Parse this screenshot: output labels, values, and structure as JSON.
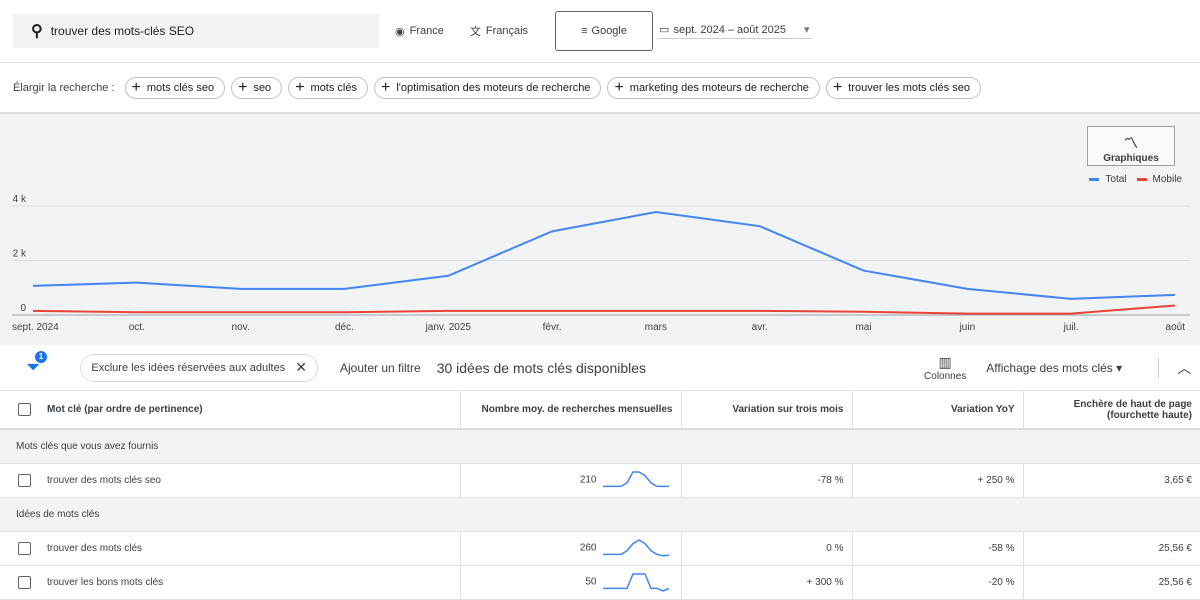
{
  "search": {
    "value": "trouver des mots-clés SEO",
    "location": "France",
    "language": "Français",
    "network": "Google",
    "date_range": "sept. 2024 – août 2025"
  },
  "broaden": {
    "label": "Élargir la recherche :",
    "chips": [
      "mots clés seo",
      "seo",
      "mots clés",
      "l'optimisation des moteurs de recherche",
      "marketing des moteurs de recherche",
      "trouver les mots clés seo"
    ]
  },
  "chart_data": {
    "type": "line",
    "categories": [
      "sept. 2024",
      "oct.",
      "nov.",
      "déc.",
      "janv. 2025",
      "févr.",
      "mars",
      "avr.",
      "mai",
      "juin",
      "juil.",
      "août"
    ],
    "y_ticks": [
      "0",
      "2 k",
      "4 k"
    ],
    "ylim": [
      0,
      4000
    ],
    "grid": true,
    "legend": "top-right",
    "series": [
      {
        "name": "Total",
        "color": "#4285f4",
        "values": [
          1070,
          1190,
          960,
          960,
          1440,
          3070,
          3780,
          3260,
          1630,
          960,
          590,
          740
        ]
      },
      {
        "name": "Mobile",
        "color": "#ea4335",
        "values": [
          150,
          100,
          100,
          100,
          150,
          150,
          150,
          150,
          120,
          50,
          50,
          350
        ]
      }
    ]
  },
  "graph_button": "Graphiques",
  "filters": {
    "badge": "1",
    "chip": "Exclure les idées réservées aux adultes",
    "add": "Ajouter un filtre",
    "count": "30 idées de mots clés disponibles",
    "columns": "Colonnes",
    "view": "Affichage des mots clés"
  },
  "table": {
    "headers": [
      "Mot clé (par ordre de pertinence)",
      "Nombre moy. de recherches mensuelles",
      "Variation sur trois mois",
      "Variation YoY",
      "Enchère de haut de page (fourchette haute)"
    ],
    "group1": "Mots clés que vous avez fournis",
    "group2": "Idées de mots clés",
    "rows": [
      {
        "kw": "trouver des mots clés seo",
        "avg": "210",
        "trend": [
          1,
          1,
          1,
          1,
          2,
          5,
          5,
          4,
          2,
          1,
          1,
          1
        ],
        "m3": "-78 %",
        "yoy": "+ 250 %",
        "bid": "3,65 €"
      },
      {
        "kw": "trouver des mots clés",
        "avg": "260",
        "trend": [
          1,
          1,
          1,
          1,
          2,
          4,
          5,
          4,
          2,
          1,
          0.6,
          0.8
        ],
        "m3": "0 %",
        "yoy": "-58 %",
        "bid": "25,56 €"
      },
      {
        "kw": "trouver les bons mots clés",
        "avg": "50",
        "trend": [
          1,
          1,
          1,
          1,
          1,
          5,
          5,
          5,
          1,
          1,
          0.3,
          1
        ],
        "m3": "+ 300 %",
        "yoy": "-20 %",
        "bid": "25,56 €"
      }
    ]
  }
}
